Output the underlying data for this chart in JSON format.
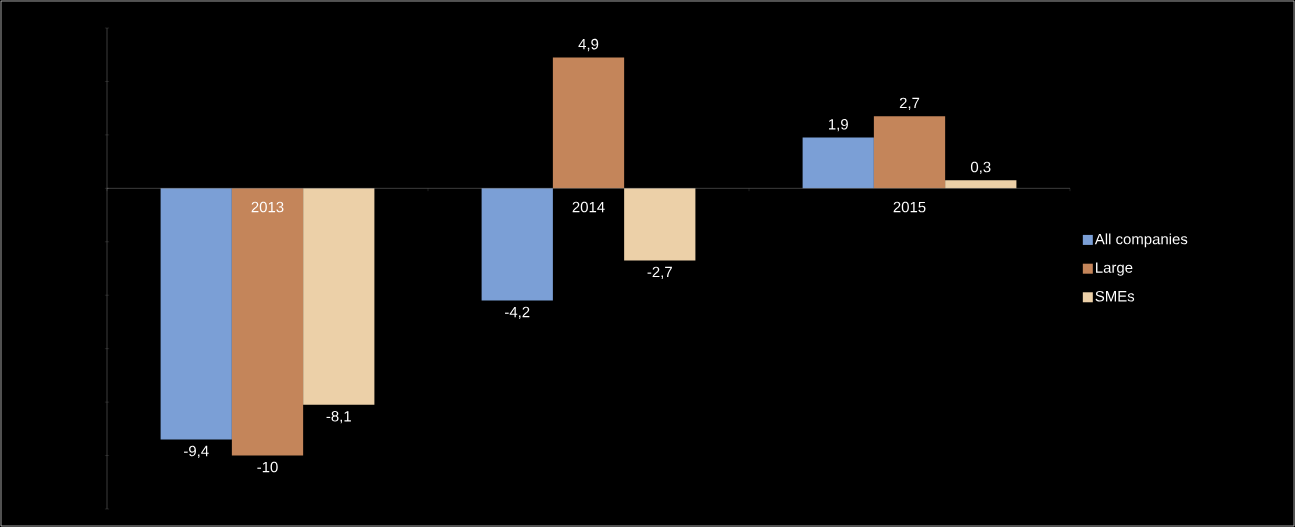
{
  "chart_data": {
    "type": "bar",
    "categories": [
      "2013",
      "2014",
      "2015"
    ],
    "series": [
      {
        "name": "All companies",
        "color": "#7b9fd6",
        "values": [
          -9.4,
          -4.2,
          1.9
        ],
        "value_labels": [
          "-9,4",
          "-4,2",
          "1,9"
        ]
      },
      {
        "name": "Large",
        "color": "#c4855a",
        "values": [
          -10,
          4.9,
          2.7
        ],
        "value_labels": [
          "-10",
          "4,9",
          "2,7"
        ]
      },
      {
        "name": "SMEs",
        "color": "#ecd0a8",
        "values": [
          -8.1,
          -2.7,
          0.3
        ],
        "value_labels": [
          "-8,1",
          "-2,7",
          "0,3"
        ]
      }
    ],
    "ylim": [
      -12,
      6
    ],
    "yticks": [
      {
        "value": -12,
        "label": null
      },
      {
        "value": -10,
        "label": null
      },
      {
        "value": -8,
        "label": null
      },
      {
        "value": -6,
        "label": null
      },
      {
        "value": -4,
        "label": null
      },
      {
        "value": -2,
        "label": null
      },
      {
        "value": 0,
        "label": null
      },
      {
        "value": 2,
        "label": null
      },
      {
        "value": 4,
        "label": null
      },
      {
        "value": 6,
        "label": null
      }
    ],
    "tick_labels": "x",
    "legend": "right"
  }
}
